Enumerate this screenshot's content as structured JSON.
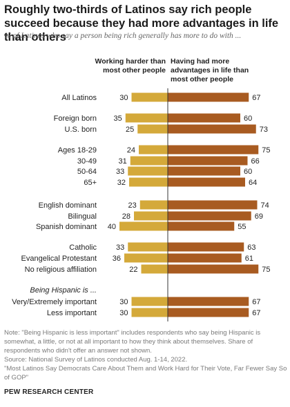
{
  "title": "Roughly two-thirds of Latinos say rich people succeed because they had more advantages in life than others",
  "subtitle": "% of Latinos who say a person being rich generally has more to do with ...",
  "chart_data": {
    "type": "bar",
    "orientation": "diverging-horizontal",
    "series": [
      {
        "name": "Working harder than most other people",
        "color": "#d4a93a",
        "values": [
          30,
          35,
          25,
          24,
          31,
          33,
          32,
          23,
          28,
          40,
          33,
          36,
          22,
          30,
          30
        ]
      },
      {
        "name": "Having had more advantages in life than most other people",
        "color": "#a85b21",
        "values": [
          67,
          60,
          73,
          75,
          66,
          60,
          64,
          74,
          69,
          55,
          63,
          61,
          75,
          67,
          67
        ]
      }
    ],
    "categories": [
      "All Latinos",
      "Foreign born",
      "U.S. born",
      "Ages 18-29",
      "30-49",
      "50-64",
      "65+",
      "English dominant",
      "Bilingual",
      "Spanish dominant",
      "Catholic",
      "Evangelical Protestant",
      "No religious affiliation",
      "Very/Extremely important",
      "Less important"
    ],
    "group_header": "Being Hispanic is ..."
  },
  "notes": [
    "Note: \"Being Hispanic is less important\" includes respondents who say being Hispanic is somewhat, a little, or not at all important to how they think about themselves. Share of respondents who didn't offer an answer not shown.",
    "Source: National Survey of Latinos conducted Aug. 1-14, 2022.",
    "\"Most Latinos Say Democrats Care About Them and Work Hard for Their Vote, Far Fewer Say So of GOP\""
  ],
  "source_org": "PEW RESEARCH CENTER"
}
